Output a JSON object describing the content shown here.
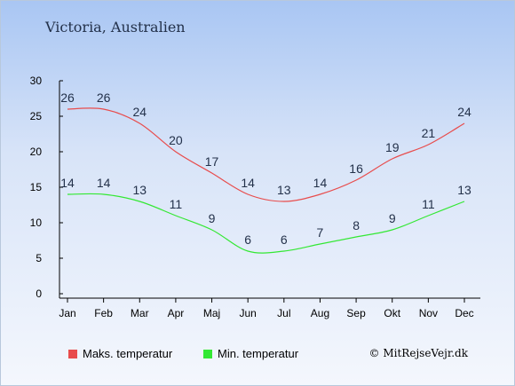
{
  "title": "Victoria, Australien",
  "copyright": "© MitRejseVejr.dk",
  "colors": {
    "max": "#e84c4c",
    "min": "#33e833"
  },
  "chart_data": {
    "type": "line",
    "title": "Victoria, Australien",
    "categories": [
      "Jan",
      "Feb",
      "Mar",
      "Apr",
      "Maj",
      "Jun",
      "Jul",
      "Aug",
      "Sep",
      "Okt",
      "Nov",
      "Dec"
    ],
    "ylim": [
      0,
      30
    ],
    "yticks": [
      0,
      5,
      10,
      15,
      20,
      25,
      30
    ],
    "grid": false,
    "legend_position": "bottom-left",
    "series": [
      {
        "name": "Maks. temperatur",
        "color": "#e84c4c",
        "values": [
          26,
          26,
          24,
          20,
          17,
          14,
          13,
          14,
          16,
          19,
          21,
          24
        ]
      },
      {
        "name": "Min. temperatur",
        "color": "#33e833",
        "values": [
          14,
          14,
          13,
          11,
          9,
          6,
          6,
          7,
          8,
          9,
          11,
          13
        ]
      }
    ]
  }
}
